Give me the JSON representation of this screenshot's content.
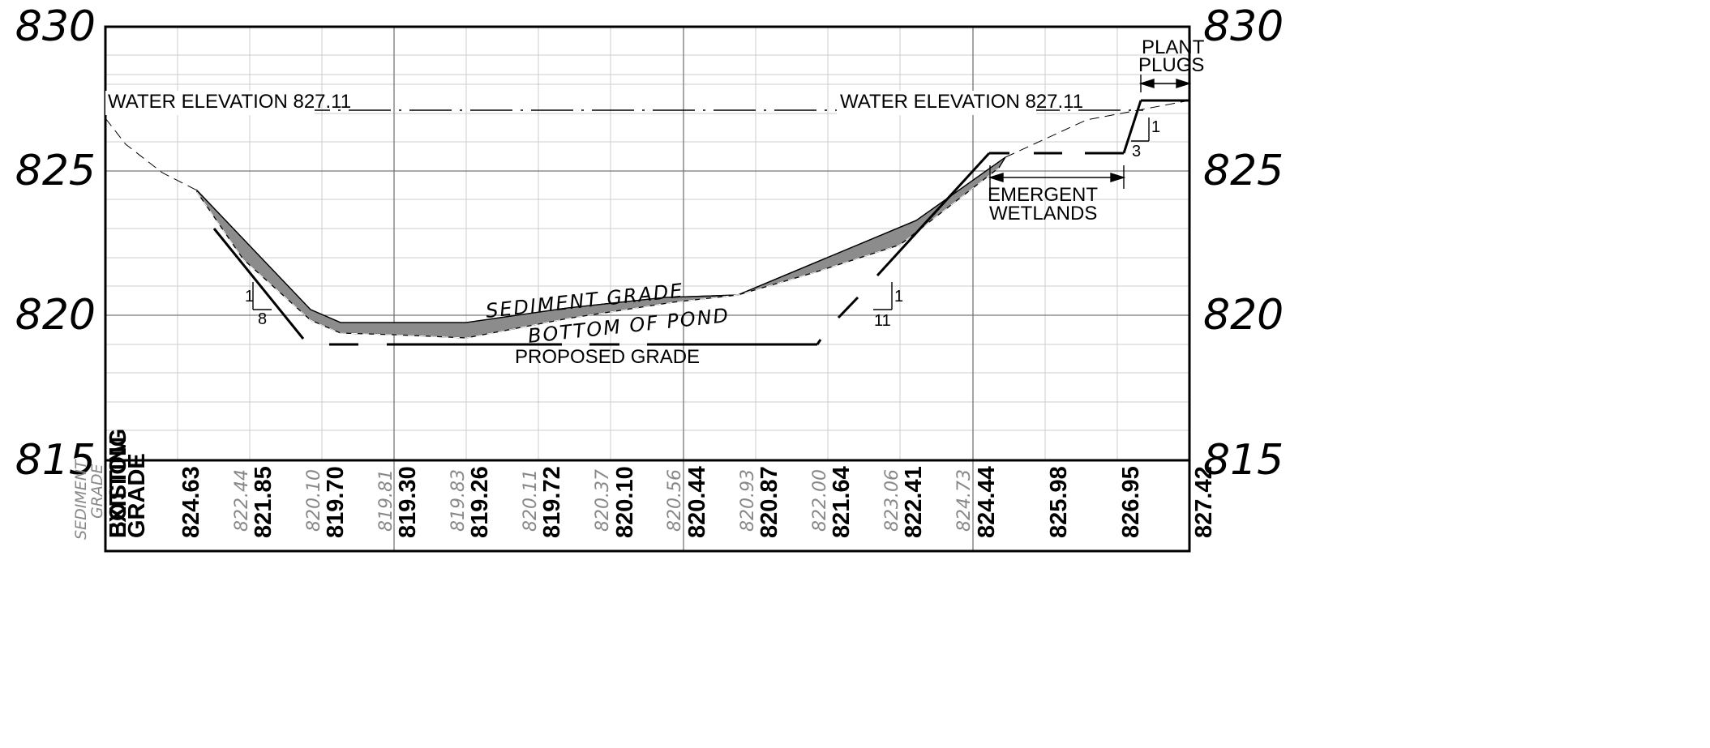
{
  "y_axis": {
    "left_labels": [
      "830",
      "825",
      "820",
      "815"
    ],
    "right_labels": [
      "830",
      "825",
      "820",
      "815"
    ],
    "range": [
      815,
      830
    ]
  },
  "annotations": {
    "water_left": "WATER ELEVATION 827.11",
    "water_right": "WATER ELEVATION 827.11",
    "sediment_grade": "SEDIMENT GRADE",
    "bottom_of_pond": "BOTTOM OF POND",
    "proposed_grade": "PROPOSED GRADE",
    "emergent_1": "EMERGENT",
    "emergent_2": "WETLANDS",
    "plant_1": "PLANT",
    "plant_2": "PLUGS",
    "slope_left_rise": "1",
    "slope_left_run": "8",
    "slope_mid_rise": "1",
    "slope_mid_run": "11",
    "slope_right_rise": "1",
    "slope_right_run": "3"
  },
  "table": {
    "sediment_label_1": "SEDIMENT",
    "sediment_label_2": "GRADE",
    "bottom_label": "BOTTOM",
    "existing_label": "EXISTING",
    "grade_label": "GRADE",
    "main_values": [
      "824.63",
      "821.85",
      "819.70",
      "819.30",
      "819.26",
      "819.72",
      "820.10",
      "820.44",
      "820.87",
      "821.64",
      "822.41",
      "824.44",
      "825.98",
      "826.95",
      "827.42"
    ],
    "sediment_values": [
      "822.44",
      "820.10",
      "819.81",
      "819.83",
      "820.11",
      "820.37",
      "820.56",
      "820.93",
      "822.00",
      "823.06",
      "824.73"
    ]
  },
  "colors": {
    "sediment_fill": "#8c8c8c",
    "grid_major": "#777777",
    "grid_minor": "#cccccc"
  }
}
